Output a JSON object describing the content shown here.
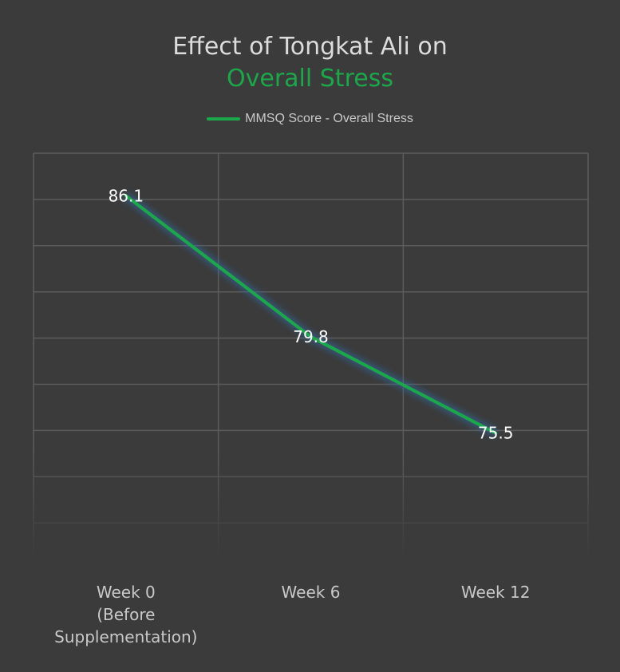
{
  "title": {
    "line1": "Effect of Tongkat Ali on",
    "line2": "Overall Stress"
  },
  "colors": {
    "background": "#3b3b3b",
    "series": "#1aa84a",
    "grid": "#5c5c5c",
    "title": "#dcdcdc",
    "label": "#ffffff"
  },
  "chart_data": {
    "type": "line",
    "categories": [
      "Week 0\n(Before\nSupplementation)",
      "Week 6",
      "Week 12"
    ],
    "series": [
      {
        "name": "MMSQ Score - Overall Stress",
        "values": [
          86.1,
          79.8,
          75.5
        ]
      }
    ],
    "data_labels": [
      "86.1",
      "79.8",
      "75.5"
    ],
    "ylim": [
      70,
      88
    ],
    "grid": true,
    "legend_position": "top-center"
  }
}
